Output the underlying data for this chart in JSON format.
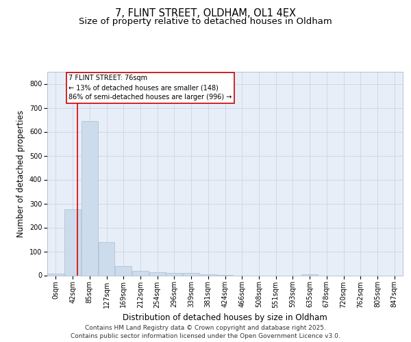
{
  "title1": "7, FLINT STREET, OLDHAM, OL1 4EX",
  "title2": "Size of property relative to detached houses in Oldham",
  "xlabel": "Distribution of detached houses by size in Oldham",
  "ylabel": "Number of detached properties",
  "footer1": "Contains HM Land Registry data © Crown copyright and database right 2025.",
  "footer2": "Contains public sector information licensed under the Open Government Licence v3.0.",
  "bin_labels": [
    "0sqm",
    "42sqm",
    "85sqm",
    "127sqm",
    "169sqm",
    "212sqm",
    "254sqm",
    "296sqm",
    "339sqm",
    "381sqm",
    "424sqm",
    "466sqm",
    "508sqm",
    "551sqm",
    "593sqm",
    "635sqm",
    "678sqm",
    "720sqm",
    "762sqm",
    "805sqm",
    "847sqm"
  ],
  "bar_values": [
    7,
    275,
    645,
    140,
    38,
    18,
    13,
    11,
    11,
    5,
    2,
    0,
    0,
    0,
    0,
    5,
    0,
    0,
    0,
    0,
    0
  ],
  "bar_color": "#ccdcec",
  "bar_edge_color": "#aabccc",
  "grid_color": "#c8d4e4",
  "background_color": "#e8eef8",
  "vline_color": "#dd0000",
  "annotation_text": "7 FLINT STREET: 76sqm\n← 13% of detached houses are smaller (148)\n86% of semi-detached houses are larger (996) →",
  "annotation_box_color": "#cc0000",
  "ylim": [
    0,
    850
  ],
  "yticks": [
    0,
    100,
    200,
    300,
    400,
    500,
    600,
    700,
    800
  ],
  "title_fontsize": 10.5,
  "subtitle_fontsize": 9.5,
  "axis_label_fontsize": 8.5,
  "tick_fontsize": 7,
  "annotation_fontsize": 7,
  "footer_fontsize": 6.5
}
